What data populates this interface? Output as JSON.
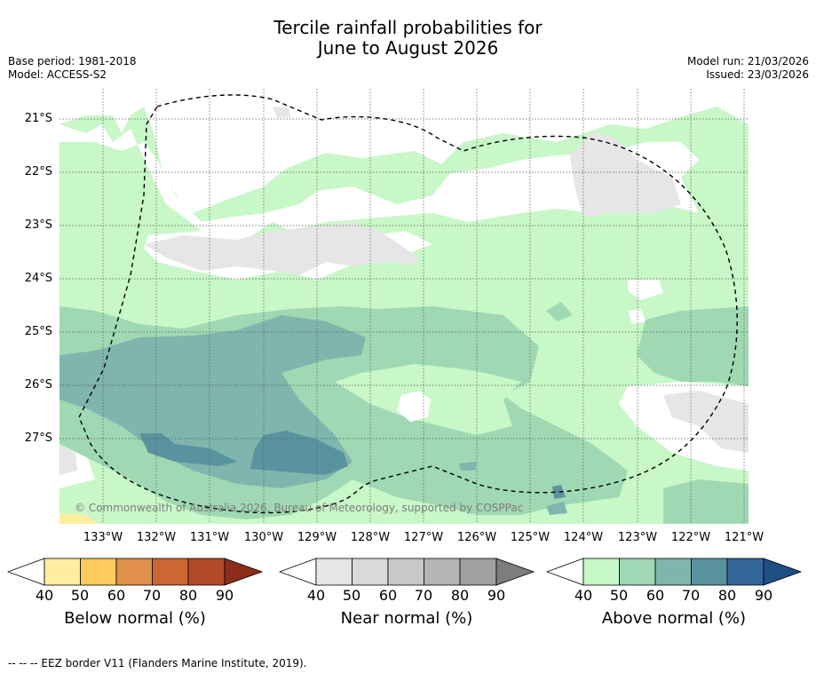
{
  "title": {
    "line1": "Tercile rainfall probabilities for",
    "line2": "June to August 2026"
  },
  "meta": {
    "base_period": "Base period: 1981-2018",
    "model": "Model: ACCESS-S2",
    "model_run": "Model run: 21/03/2026",
    "issued": "Issued: 23/03/2026"
  },
  "map": {
    "latitude_labels": [
      "21°S",
      "22°S",
      "23°S",
      "24°S",
      "25°S",
      "26°S",
      "27°S"
    ],
    "longitude_labels": [
      "133°W",
      "132°W",
      "131°W",
      "130°W",
      "129°W",
      "128°W",
      "127°W",
      "126°W",
      "125°W",
      "124°W",
      "123°W",
      "122°W",
      "121°W"
    ],
    "copyright": "© Commonwealth of Australia 2026, Bureau of Meteorology, supported by COSPPac"
  },
  "colorbars": [
    {
      "label": "Below normal (%)",
      "ticks": [
        "40",
        "50",
        "60",
        "70",
        "80",
        "90"
      ],
      "colors": [
        "#ffffff",
        "#ffeda0",
        "#fecc5c",
        "#e0904a",
        "#cc6633",
        "#b04a28",
        "#8b2d1a"
      ]
    },
    {
      "label": "Near normal (%)",
      "ticks": [
        "40",
        "50",
        "60",
        "70",
        "80",
        "90"
      ],
      "colors": [
        "#ffffff",
        "#e6e6e6",
        "#d9d9d9",
        "#c8c8c8",
        "#b5b5b5",
        "#a0a0a0",
        "#7d7d7d"
      ]
    },
    {
      "label": "Above normal (%)",
      "ticks": [
        "40",
        "50",
        "60",
        "70",
        "80",
        "90"
      ],
      "colors": [
        "#ffffff",
        "#c8f7c8",
        "#a0d8b3",
        "#7fb5ad",
        "#5a93a0",
        "#336699",
        "#1e4f85"
      ]
    }
  ],
  "footer": "--  --  -- EEZ border V11 (Flanders Marine Institute, 2019)."
}
